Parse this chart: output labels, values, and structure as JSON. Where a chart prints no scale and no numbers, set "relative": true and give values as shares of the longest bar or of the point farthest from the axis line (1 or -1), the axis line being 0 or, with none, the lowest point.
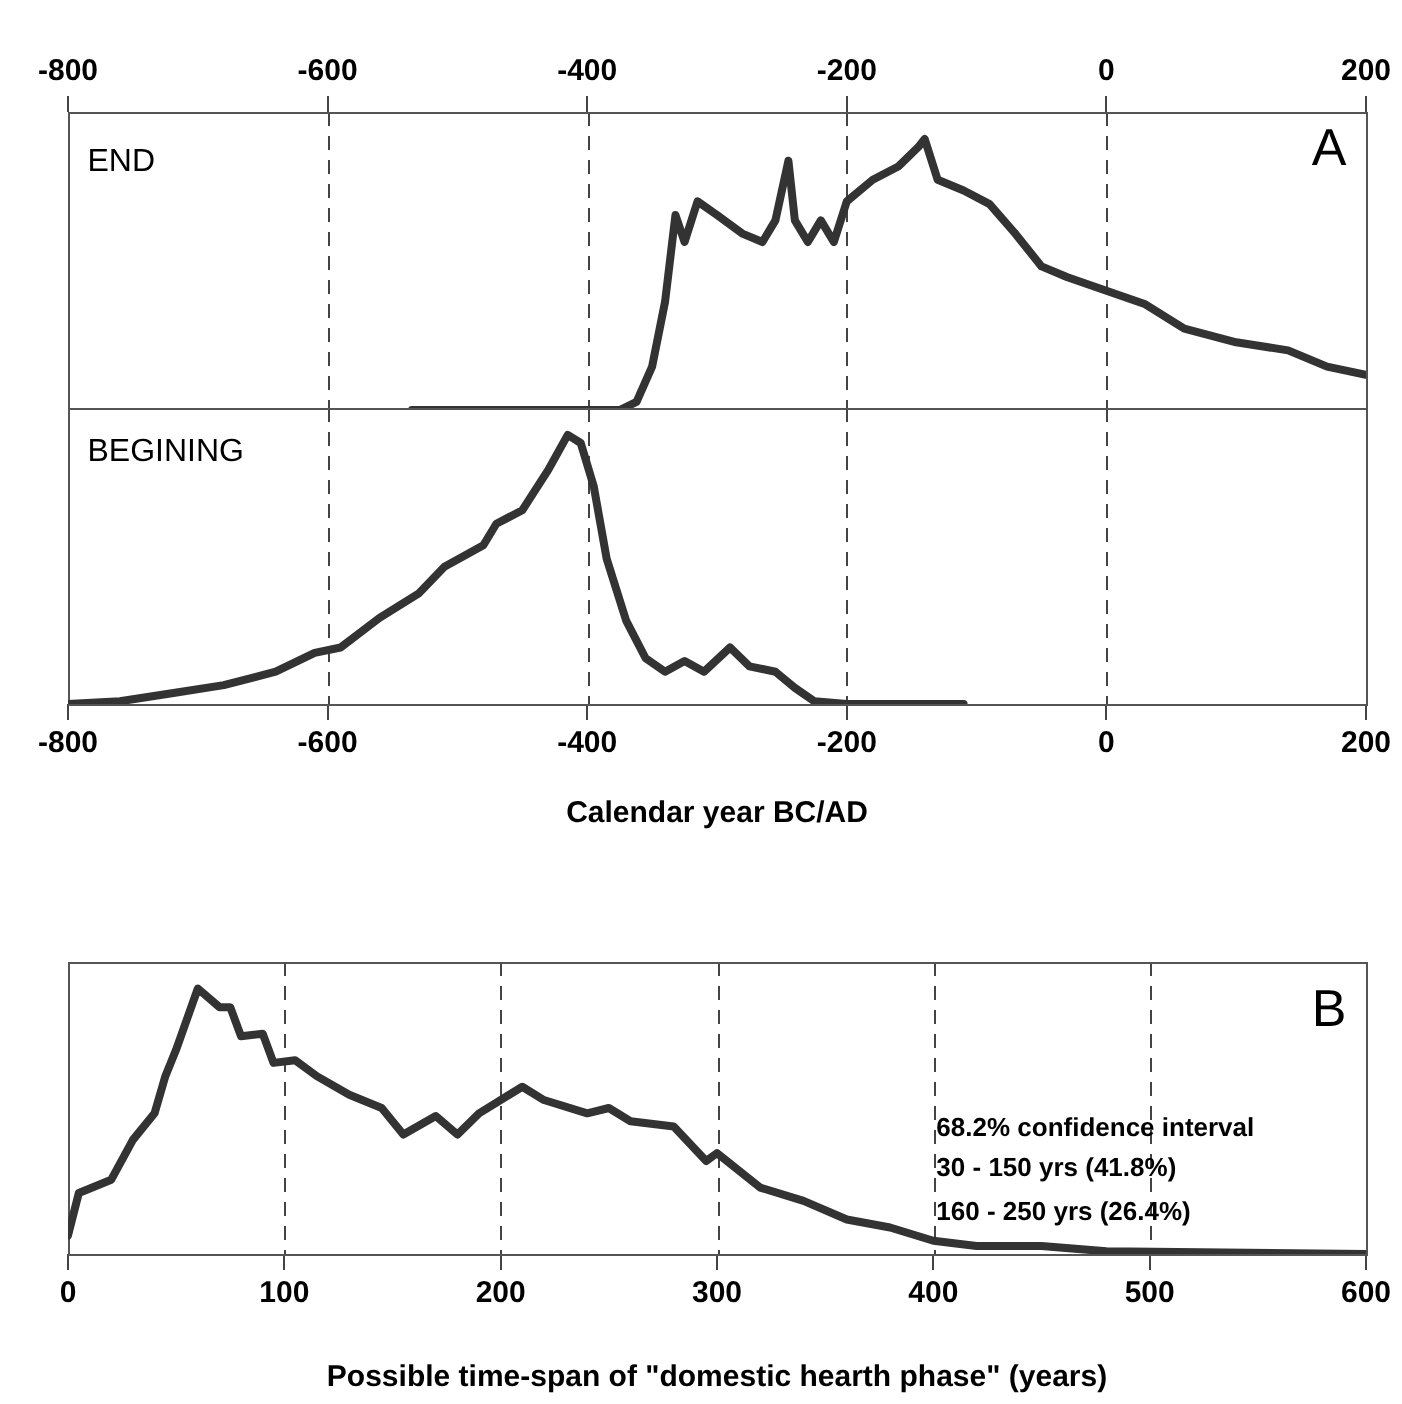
{
  "chart_data": [
    {
      "type": "line",
      "relative": true,
      "grid": "x",
      "xlim": [
        -800,
        200
      ],
      "xticks": [
        -800,
        -600,
        -400,
        -200,
        0,
        200
      ],
      "annotations": [
        "END",
        "A"
      ],
      "series": [
        {
          "color": "#333333",
          "x": [
            -535,
            -375,
            -362,
            -350,
            -340,
            -332,
            -325,
            -315,
            -300,
            -280,
            -265,
            -255,
            -245,
            -240,
            -230,
            -220,
            -210,
            -200,
            -180,
            -160,
            -145,
            -140,
            -130,
            -110,
            -90,
            -70,
            -50,
            -30,
            0,
            30,
            60,
            100,
            140,
            170,
            200
          ],
          "values": [
            0,
            0,
            0.03,
            0.16,
            0.4,
            0.72,
            0.62,
            0.77,
            0.72,
            0.65,
            0.62,
            0.7,
            0.92,
            0.7,
            0.62,
            0.7,
            0.62,
            0.77,
            0.85,
            0.9,
            0.97,
            1,
            0.85,
            0.81,
            0.76,
            0.65,
            0.53,
            0.49,
            0.44,
            0.39,
            0.3,
            0.25,
            0.22,
            0.16,
            0.13
          ]
        }
      ]
    },
    {
      "type": "line",
      "relative": true,
      "grid": "x",
      "xlim": [
        -800,
        200
      ],
      "xticks": [
        -800,
        -600,
        -400,
        -200,
        0,
        200
      ],
      "xlabel": "Calendar year BC/AD",
      "annotations": [
        "BEGINING"
      ],
      "series": [
        {
          "color": "#333333",
          "x": [
            -800,
            -760,
            -720,
            -680,
            -640,
            -610,
            -590,
            -560,
            -530,
            -510,
            -480,
            -470,
            -450,
            -430,
            -415,
            -405,
            -395,
            -385,
            -370,
            -355,
            -340,
            -325,
            -310,
            -290,
            -275,
            -255,
            -240,
            -225,
            -200,
            -110
          ],
          "values": [
            0,
            0.01,
            0.04,
            0.07,
            0.12,
            0.19,
            0.21,
            0.32,
            0.41,
            0.51,
            0.59,
            0.67,
            0.72,
            0.87,
            1,
            0.97,
            0.81,
            0.54,
            0.31,
            0.17,
            0.12,
            0.16,
            0.12,
            0.21,
            0.14,
            0.12,
            0.06,
            0.01,
            0,
            0
          ]
        }
      ]
    },
    {
      "type": "line",
      "relative": true,
      "grid": "x",
      "xlim": [
        0,
        600
      ],
      "xticks": [
        0,
        100,
        200,
        300,
        400,
        500,
        600
      ],
      "xlabel": "Possible time-span of \"domestic hearth phase\" (years)",
      "annotations": [
        "B",
        "68.2% confidence interval",
        "30 - 150 yrs (41.8%)",
        "160 - 250 yrs (26.4%)"
      ],
      "series": [
        {
          "color": "#333333",
          "x": [
            0,
            5,
            20,
            30,
            40,
            45,
            50,
            60,
            70,
            75,
            80,
            90,
            95,
            105,
            115,
            130,
            145,
            155,
            170,
            180,
            190,
            210,
            220,
            240,
            250,
            260,
            280,
            295,
            300,
            320,
            340,
            360,
            380,
            400,
            420,
            450,
            480,
            600
          ],
          "values": [
            0.07,
            0.23,
            0.28,
            0.43,
            0.53,
            0.67,
            0.77,
            1,
            0.93,
            0.93,
            0.82,
            0.83,
            0.72,
            0.73,
            0.67,
            0.6,
            0.55,
            0.45,
            0.52,
            0.45,
            0.53,
            0.63,
            0.58,
            0.53,
            0.55,
            0.5,
            0.48,
            0.35,
            0.38,
            0.25,
            0.2,
            0.13,
            0.1,
            0.05,
            0.03,
            0.03,
            0.01,
            0
          ]
        }
      ]
    }
  ]
}
